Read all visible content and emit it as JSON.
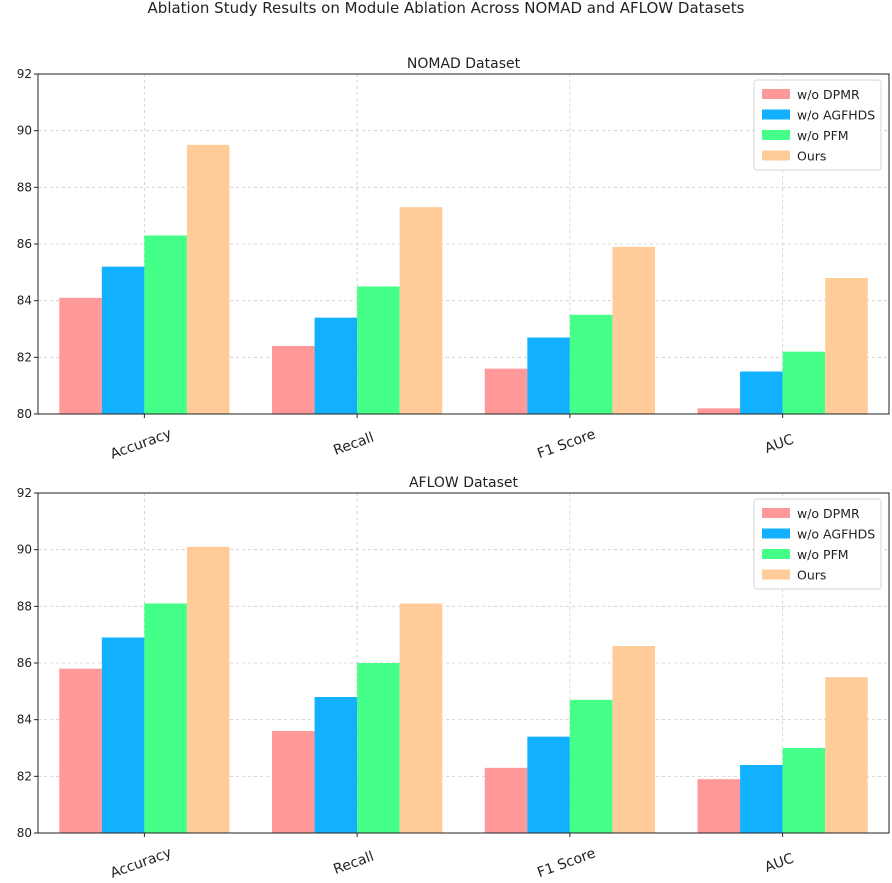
{
  "figure_title": "Ablation Study Results on Module Ablation Across NOMAD and AFLOW Datasets",
  "colors": {
    "w/o DPMR": "#ff9999",
    "w/o AGFHDS": "#11b1ff",
    "w/o PFM": "#44ff88",
    "Ours": "#ffcc99",
    "grid": "#cccccc",
    "axis": "#222222"
  },
  "chart_data": [
    {
      "type": "bar",
      "title": "NOMAD Dataset",
      "categories": [
        "Accuracy",
        "Recall",
        "F1 Score",
        "AUC"
      ],
      "series": [
        {
          "name": "w/o DPMR",
          "values": [
            84.1,
            82.4,
            81.6,
            80.2
          ]
        },
        {
          "name": "w/o AGFHDS",
          "values": [
            85.2,
            83.4,
            82.7,
            81.5
          ]
        },
        {
          "name": "w/o PFM",
          "values": [
            86.3,
            84.5,
            83.5,
            82.2
          ]
        },
        {
          "name": "Ours",
          "values": [
            89.5,
            87.3,
            85.9,
            84.8
          ]
        }
      ],
      "ylim": [
        80,
        92
      ],
      "yticks": [
        80,
        82,
        84,
        86,
        88,
        90,
        92
      ],
      "xlabel": "",
      "ylabel": "",
      "grid": true,
      "legend": "top-right"
    },
    {
      "type": "bar",
      "title": "AFLOW Dataset",
      "categories": [
        "Accuracy",
        "Recall",
        "F1 Score",
        "AUC"
      ],
      "series": [
        {
          "name": "w/o DPMR",
          "values": [
            85.8,
            83.6,
            82.3,
            81.9
          ]
        },
        {
          "name": "w/o AGFHDS",
          "values": [
            86.9,
            84.8,
            83.4,
            82.4
          ]
        },
        {
          "name": "w/o PFM",
          "values": [
            88.1,
            86.0,
            84.7,
            83.0
          ]
        },
        {
          "name": "Ours",
          "values": [
            90.1,
            88.1,
            86.6,
            85.5
          ]
        }
      ],
      "ylim": [
        80,
        92
      ],
      "yticks": [
        80,
        82,
        84,
        86,
        88,
        90,
        92
      ],
      "xlabel": "",
      "ylabel": "",
      "grid": true,
      "legend": "top-right"
    }
  ]
}
